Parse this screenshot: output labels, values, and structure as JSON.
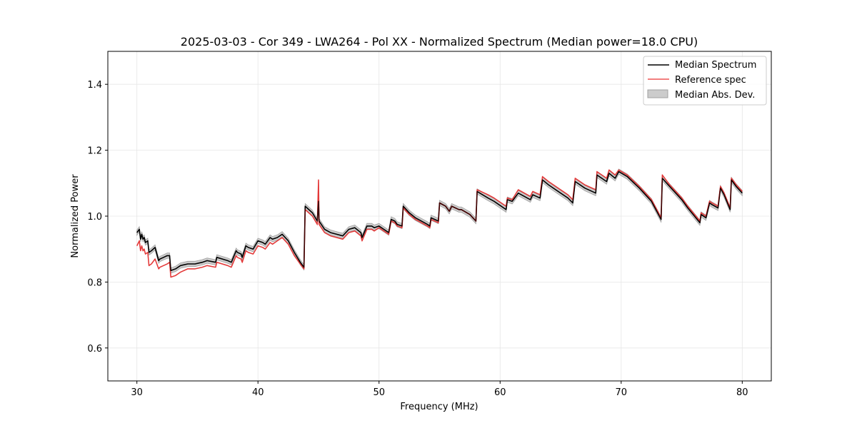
{
  "chart_data": {
    "type": "line",
    "title": "2025-03-03 - Cor 349 - LWA264 - Pol XX - Normalized Spectrum (Median power=18.0 CPU)",
    "xlabel": "Frequency (MHz)",
    "ylabel": "Normalized Power",
    "xlim": [
      27.6,
      82.4
    ],
    "ylim": [
      0.5,
      1.5
    ],
    "xticks": [
      30,
      40,
      50,
      60,
      70,
      80
    ],
    "yticks": [
      0.6,
      0.8,
      1.0,
      1.2,
      1.4
    ],
    "xtick_labels": [
      "30",
      "40",
      "50",
      "60",
      "70",
      "80"
    ],
    "ytick_labels": [
      "0.6",
      "0.8",
      "1.0",
      "1.2",
      "1.4"
    ],
    "grid": true,
    "legend_position": "top-right",
    "colors": {
      "median": "#000000",
      "reference": "#ee5555",
      "mad_fill": "#a0a0a0"
    },
    "series": [
      {
        "name": "Median Spectrum",
        "x": [
          30.0,
          30.2,
          30.3,
          30.4,
          30.5,
          30.6,
          30.7,
          30.9,
          31.0,
          31.2,
          31.5,
          31.8,
          31.9,
          32.2,
          32.5,
          32.7,
          32.8,
          33.2,
          33.6,
          34.2,
          34.8,
          35.4,
          35.8,
          36.5,
          36.6,
          37.5,
          37.8,
          38.2,
          38.3,
          38.6,
          38.7,
          39.0,
          39.2,
          39.6,
          40.0,
          40.4,
          40.6,
          41.0,
          41.2,
          41.6,
          42.0,
          42.5,
          43.0,
          43.5,
          43.8,
          43.9,
          44.5,
          44.9,
          45.0,
          45.05,
          45.5,
          46.0,
          46.5,
          47.0,
          47.5,
          48.0,
          48.5,
          48.6,
          49.0,
          49.4,
          49.6,
          50.0,
          50.4,
          50.8,
          51.0,
          51.3,
          51.5,
          51.9,
          52.0,
          52.5,
          53.0,
          53.5,
          54.0,
          54.2,
          54.3,
          54.6,
          54.9,
          55.0,
          55.5,
          55.8,
          56.0,
          56.6,
          56.8,
          57.5,
          58.0,
          58.1,
          59.0,
          59.5,
          60.5,
          60.6,
          61.0,
          61.5,
          62.0,
          62.5,
          62.7,
          63.0,
          63.3,
          63.5,
          64.0,
          65.0,
          65.6,
          66.0,
          66.2,
          67.0,
          67.9,
          68.0,
          68.8,
          69.0,
          69.5,
          69.8,
          70.5,
          71.5,
          72.5,
          73.3,
          73.4,
          74.0,
          75.0,
          75.5,
          76.5,
          76.6,
          77.0,
          77.3,
          77.5,
          78.0,
          78.2,
          78.5,
          79.0,
          79.1,
          79.5,
          80.0
        ],
        "values": [
          0.95,
          0.96,
          0.93,
          0.945,
          0.93,
          0.935,
          0.92,
          0.925,
          0.89,
          0.895,
          0.905,
          0.865,
          0.87,
          0.875,
          0.88,
          0.88,
          0.835,
          0.84,
          0.85,
          0.855,
          0.855,
          0.86,
          0.865,
          0.86,
          0.875,
          0.865,
          0.86,
          0.895,
          0.89,
          0.885,
          0.875,
          0.91,
          0.905,
          0.9,
          0.925,
          0.92,
          0.915,
          0.935,
          0.93,
          0.935,
          0.945,
          0.925,
          0.89,
          0.86,
          0.845,
          1.03,
          1.01,
          0.985,
          1.045,
          0.985,
          0.96,
          0.95,
          0.945,
          0.94,
          0.96,
          0.965,
          0.95,
          0.935,
          0.97,
          0.97,
          0.965,
          0.97,
          0.96,
          0.95,
          0.99,
          0.985,
          0.975,
          0.97,
          1.03,
          1.01,
          0.995,
          0.985,
          0.975,
          0.97,
          0.995,
          0.99,
          0.985,
          1.04,
          1.03,
          1.015,
          1.03,
          1.02,
          1.02,
          1.005,
          0.985,
          1.075,
          1.055,
          1.045,
          1.02,
          1.05,
          1.045,
          1.07,
          1.06,
          1.05,
          1.065,
          1.06,
          1.055,
          1.11,
          1.095,
          1.07,
          1.055,
          1.04,
          1.105,
          1.085,
          1.07,
          1.125,
          1.105,
          1.13,
          1.115,
          1.135,
          1.12,
          1.085,
          1.045,
          0.99,
          1.115,
          1.09,
          1.05,
          1.025,
          0.98,
          1.005,
          0.995,
          1.04,
          1.035,
          1.025,
          1.085,
          1.065,
          1.02,
          1.11,
          1.09,
          1.07
        ]
      },
      {
        "name": "Reference spec",
        "x": [
          30.0,
          30.2,
          30.3,
          30.4,
          30.5,
          30.6,
          30.7,
          30.9,
          31.0,
          31.2,
          31.5,
          31.8,
          31.9,
          32.2,
          32.5,
          32.7,
          32.8,
          33.2,
          33.6,
          34.2,
          34.8,
          35.4,
          35.8,
          36.5,
          36.6,
          37.5,
          37.8,
          38.2,
          38.3,
          38.6,
          38.7,
          39.0,
          39.2,
          39.6,
          40.0,
          40.4,
          40.6,
          41.0,
          41.2,
          41.6,
          42.0,
          42.5,
          43.0,
          43.5,
          43.8,
          43.9,
          44.5,
          44.9,
          45.0,
          45.05,
          45.5,
          46.0,
          46.5,
          47.0,
          47.5,
          48.0,
          48.5,
          48.6,
          49.0,
          49.4,
          49.6,
          50.0,
          50.4,
          50.8,
          51.0,
          51.3,
          51.5,
          51.9,
          52.0,
          52.5,
          53.0,
          53.5,
          54.0,
          54.2,
          54.3,
          54.6,
          54.9,
          55.0,
          55.5,
          55.8,
          56.0,
          56.6,
          56.8,
          57.5,
          58.0,
          58.1,
          59.0,
          59.5,
          60.5,
          60.6,
          61.0,
          61.5,
          62.0,
          62.5,
          62.7,
          63.0,
          63.3,
          63.5,
          64.0,
          65.0,
          65.6,
          66.0,
          66.2,
          67.0,
          67.9,
          68.0,
          68.8,
          69.0,
          69.5,
          69.8,
          70.5,
          71.5,
          72.5,
          73.3,
          73.4,
          74.0,
          75.0,
          75.5,
          76.5,
          76.6,
          77.0,
          77.3,
          77.5,
          78.0,
          78.2,
          78.5,
          79.0,
          79.1,
          79.5,
          80.0
        ],
        "values": [
          0.91,
          0.925,
          0.895,
          0.91,
          0.895,
          0.9,
          0.885,
          0.89,
          0.85,
          0.855,
          0.87,
          0.84,
          0.845,
          0.85,
          0.855,
          0.86,
          0.815,
          0.82,
          0.83,
          0.84,
          0.84,
          0.845,
          0.85,
          0.845,
          0.86,
          0.85,
          0.845,
          0.88,
          0.875,
          0.87,
          0.86,
          0.895,
          0.89,
          0.885,
          0.91,
          0.905,
          0.9,
          0.92,
          0.915,
          0.925,
          0.935,
          0.915,
          0.88,
          0.855,
          0.84,
          1.02,
          1.0,
          0.975,
          1.11,
          0.975,
          0.95,
          0.94,
          0.935,
          0.93,
          0.95,
          0.955,
          0.94,
          0.925,
          0.96,
          0.96,
          0.955,
          0.965,
          0.955,
          0.945,
          0.985,
          0.98,
          0.97,
          0.965,
          1.025,
          1.005,
          0.99,
          0.98,
          0.97,
          0.965,
          0.99,
          0.985,
          0.98,
          1.04,
          1.03,
          1.015,
          1.03,
          1.02,
          1.02,
          1.005,
          0.985,
          1.08,
          1.065,
          1.055,
          1.03,
          1.055,
          1.05,
          1.08,
          1.07,
          1.06,
          1.075,
          1.07,
          1.065,
          1.12,
          1.105,
          1.08,
          1.065,
          1.05,
          1.115,
          1.095,
          1.08,
          1.135,
          1.115,
          1.14,
          1.125,
          1.14,
          1.125,
          1.09,
          1.05,
          0.995,
          1.125,
          1.095,
          1.055,
          1.03,
          0.985,
          1.01,
          1.0,
          1.045,
          1.04,
          1.03,
          1.09,
          1.07,
          1.025,
          1.115,
          1.095,
          1.075
        ]
      },
      {
        "name": "Median Abs. Dev.",
        "type": "band",
        "half_width": 0.008
      }
    ]
  }
}
